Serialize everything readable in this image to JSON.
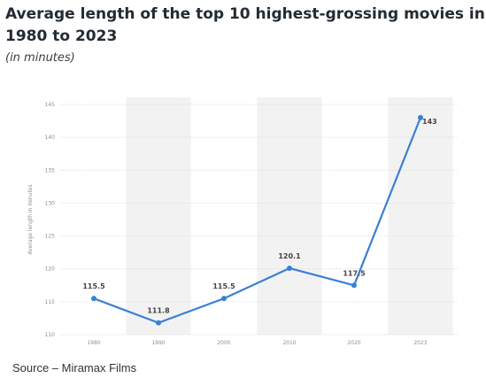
{
  "page": {
    "title_line1": "Average length of the top 10 highest-grossing movies in",
    "title_line2": "1980 to 2023",
    "subtitle": "(in minutes)",
    "source": "Source – Miramax Films"
  },
  "colors": {
    "line": "#3a7fd5",
    "band": "#f2f2f2",
    "grid": "#d8d8d8",
    "tick": "#8a8f94"
  },
  "chart_data": {
    "type": "line",
    "title": "Average length of the top 10 highest-grossing movies in 1980 to 2023",
    "subtitle": "(in minutes)",
    "xlabel": "",
    "ylabel": "Average length in minutes",
    "categories": [
      "1980",
      "1990",
      "2000",
      "2010",
      "2020",
      "2023"
    ],
    "series": [
      {
        "values": [
          115.5,
          111.8,
          115.5,
          120.1,
          117.5,
          143
        ]
      }
    ],
    "data_labels": [
      "115.5",
      "111.8",
      "115.5",
      "120.1",
      "117.5",
      "143"
    ],
    "ylim": [
      110,
      145
    ],
    "yticks": [
      110,
      115,
      120,
      125,
      130,
      135,
      140,
      145
    ],
    "grid": true,
    "legend": "none"
  }
}
